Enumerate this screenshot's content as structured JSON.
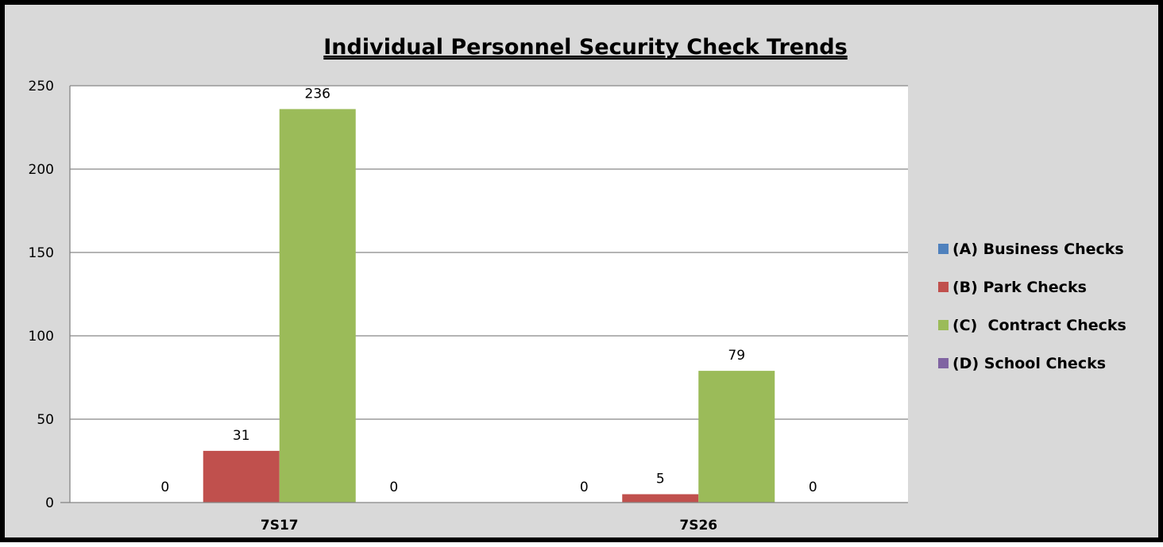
{
  "chart_data": {
    "type": "bar",
    "title": "Individual Personnel Security Check Trends",
    "xlabel": "",
    "ylabel": "",
    "categories": [
      "7S17",
      "7S26"
    ],
    "series": [
      {
        "name": "(A) Business Checks",
        "values": [
          0,
          0
        ],
        "color": "#4f81bd"
      },
      {
        "name": "(B) Park Checks",
        "values": [
          31,
          5
        ],
        "color": "#c0504d"
      },
      {
        "name": "(C)  Contract Checks",
        "values": [
          236,
          79
        ],
        "color": "#9bbb59"
      },
      {
        "name": "(D) School Checks",
        "values": [
          0,
          0
        ],
        "color": "#8064a2"
      }
    ],
    "ylim": [
      0,
      250
    ],
    "yticks": [
      0,
      50,
      100,
      150,
      200,
      250
    ],
    "grid": true,
    "legend_position": "right",
    "data_labels": true
  }
}
